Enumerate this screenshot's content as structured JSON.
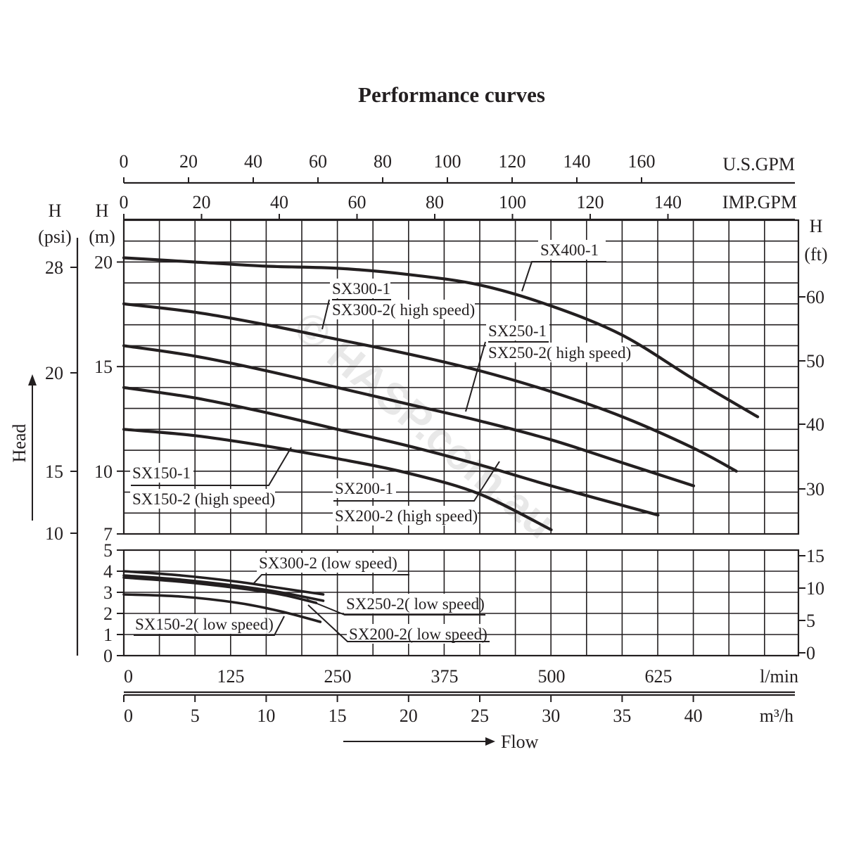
{
  "watermark": "© HASP.com.au",
  "chart_data": [
    {
      "panel": "upper",
      "type": "line",
      "title": "Performance curves",
      "xlabel": "Flow",
      "ylabel": "Head",
      "x_axes": [
        {
          "unit": "U.S.GPM",
          "ticks": [
            "0",
            "20",
            "40",
            "60",
            "80",
            "100",
            "120",
            "140",
            "160"
          ]
        },
        {
          "unit": "IMP.GPM",
          "ticks": [
            "0",
            "20",
            "40",
            "60",
            "80",
            "100",
            "120",
            "140"
          ]
        },
        {
          "unit": "l/min",
          "ticks": [
            "0",
            "125",
            "250",
            "375",
            "500",
            "625"
          ]
        },
        {
          "unit": "m³/h",
          "ticks": [
            "0",
            "5",
            "10",
            "15",
            "20",
            "25",
            "30",
            "35",
            "40"
          ]
        }
      ],
      "y_axes": [
        {
          "unit_top": "H",
          "unit_bottom": "(psi)",
          "ticks": [
            "28",
            "20",
            "15",
            "10"
          ]
        },
        {
          "unit_top": "H",
          "unit_bottom": "(m)",
          "ticks": [
            "20",
            "15",
            "10",
            "7"
          ]
        },
        {
          "unit_top": "H",
          "unit_bottom": "(ft)",
          "ticks": [
            "60",
            "50",
            "40",
            "30"
          ]
        }
      ],
      "xlim": [
        0,
        46
      ],
      "ylim": [
        7,
        22
      ],
      "grid": true,
      "series": [
        {
          "name": "SX400-1",
          "x": [
            0,
            5,
            10,
            15,
            20,
            25,
            30,
            35,
            40,
            44.5
          ],
          "y": [
            20.2,
            20.0,
            19.8,
            19.7,
            19.4,
            18.9,
            17.9,
            16.5,
            14.4,
            12.6
          ]
        },
        {
          "name": "SX300-1 / SX300-2( high speed)",
          "x": [
            0,
            5,
            10,
            15,
            20,
            25,
            30,
            35,
            40,
            43
          ],
          "y": [
            18.0,
            17.6,
            17.0,
            16.3,
            15.6,
            14.8,
            13.8,
            12.6,
            11.1,
            10.0
          ]
        },
        {
          "name": "SX250-1 / SX250-2( high speed)",
          "x": [
            0,
            5,
            10,
            15,
            20,
            25,
            30,
            35,
            40
          ],
          "y": [
            16.0,
            15.5,
            14.8,
            14.0,
            13.2,
            12.4,
            11.5,
            10.4,
            9.3
          ]
        },
        {
          "name": "SX200-1 / SX200-2 (high speed)",
          "x": [
            0,
            5,
            10,
            15,
            20,
            25,
            30,
            37.5
          ],
          "y": [
            14.0,
            13.5,
            12.8,
            12.0,
            11.2,
            10.3,
            9.3,
            7.9
          ]
        },
        {
          "name": "SX150-1 / SX150-2 (high speed)",
          "x": [
            0,
            5,
            10,
            15,
            20,
            25,
            30
          ],
          "y": [
            12.0,
            11.7,
            11.2,
            10.6,
            9.9,
            8.9,
            7.2
          ]
        }
      ],
      "labels": [
        {
          "text": "SX400-1",
          "points_to": "SX400-1"
        },
        {
          "text": "SX300-1",
          "points_to": "SX300-1 / SX300-2( high speed)"
        },
        {
          "text": "SX300-2( high speed)",
          "points_to": "SX300-1 / SX300-2( high speed)"
        },
        {
          "text": "SX250-1",
          "points_to": "SX250-1 / SX250-2( high speed)"
        },
        {
          "text": "SX250-2( high speed)",
          "points_to": "SX250-1 / SX250-2( high speed)"
        },
        {
          "text": "SX150-1",
          "points_to": "SX150-1 / SX150-2 (high speed)"
        },
        {
          "text": "SX150-2 (high speed)",
          "points_to": "SX150-1 / SX150-2 (high speed)"
        },
        {
          "text": "SX200-1",
          "points_to": "SX200-1 / SX200-2 (high speed)"
        },
        {
          "text": "SX200-2 (high speed)",
          "points_to": "SX200-1 / SX200-2 (high speed)"
        }
      ]
    },
    {
      "panel": "lower",
      "type": "line",
      "xlim": [
        0,
        46
      ],
      "ylim": [
        0,
        5
      ],
      "y_axes": [
        {
          "unit": "m",
          "ticks": [
            "5",
            "4",
            "3",
            "2",
            "1",
            "0"
          ]
        },
        {
          "unit": "ft",
          "ticks": [
            "15",
            "10",
            "5",
            "0"
          ]
        }
      ],
      "grid": true,
      "series": [
        {
          "name": "SX300-2 (low speed)",
          "x": [
            0,
            4,
            8,
            11,
            14
          ],
          "y": [
            4.0,
            3.8,
            3.5,
            3.2,
            2.9
          ]
        },
        {
          "name": "SX250-2( low speed)",
          "x": [
            0,
            4,
            8,
            11,
            14
          ],
          "y": [
            3.8,
            3.6,
            3.3,
            3.0,
            2.6
          ]
        },
        {
          "name": "SX200-2( low speed)",
          "x": [
            0,
            4,
            8,
            11,
            13.5
          ],
          "y": [
            3.7,
            3.5,
            3.2,
            2.9,
            2.5
          ]
        },
        {
          "name": "SX150-2( low speed)",
          "x": [
            0,
            4,
            8,
            11,
            13.8
          ],
          "y": [
            2.9,
            2.8,
            2.5,
            2.1,
            1.6
          ]
        }
      ]
    }
  ]
}
